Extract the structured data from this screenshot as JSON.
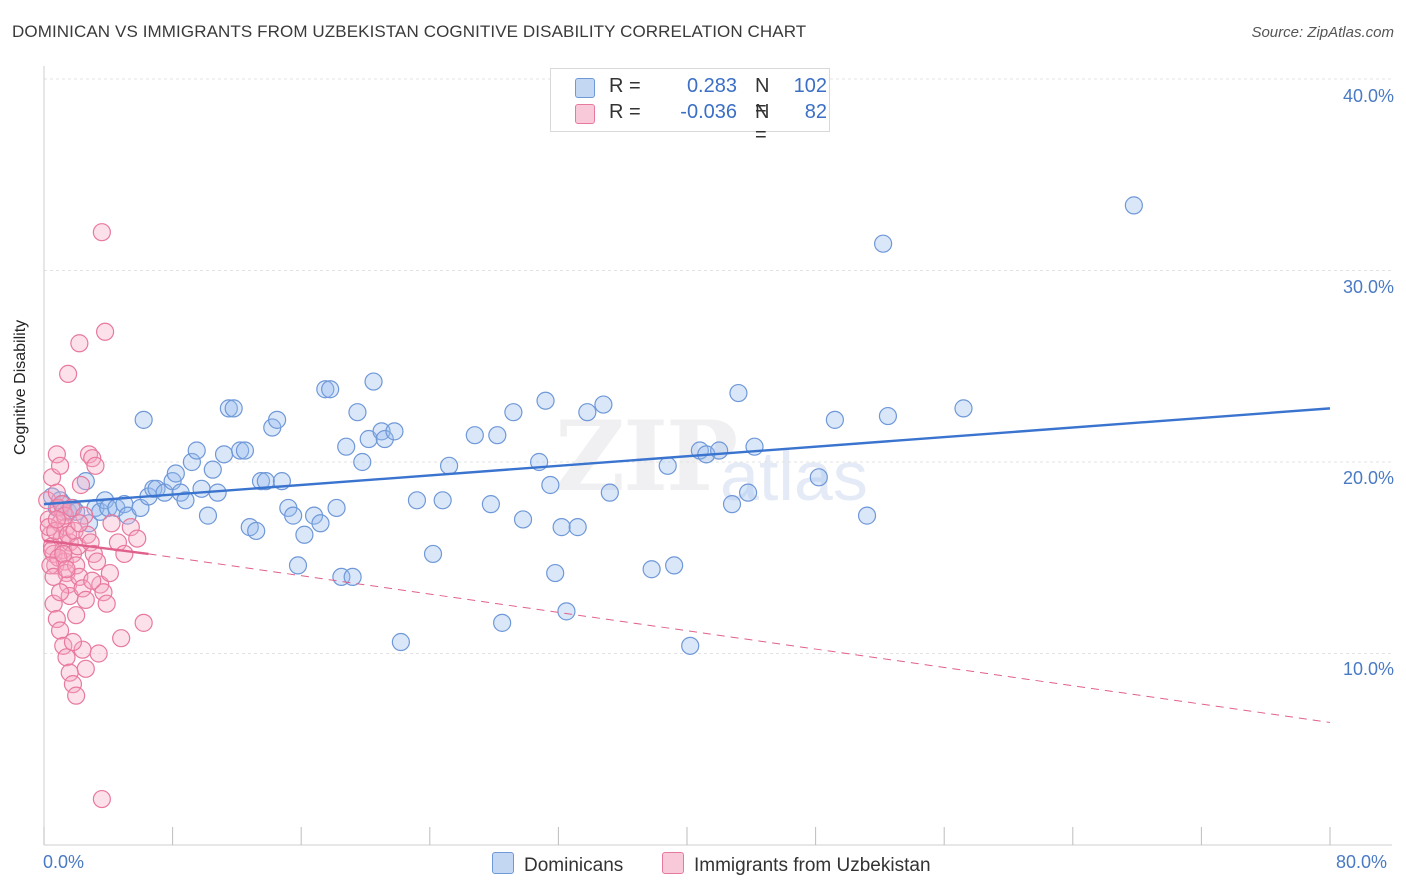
{
  "title": "DOMINICAN VS IMMIGRANTS FROM UZBEKISTAN COGNITIVE DISABILITY CORRELATION CHART",
  "source": "Source: ZipAtlas.com",
  "watermark": "ZIP",
  "watermark2": "atlas",
  "colors": {
    "blue": "#5b8fd6",
    "blue_fill": "#aec8ef",
    "pink": "#e8739a",
    "pink_fill": "#f5b8cc",
    "accent_text": "#3b6fc6"
  },
  "legend": {
    "rows": [
      {
        "r_label": "R =",
        "r_value": "0.283",
        "n_label": "N =",
        "n_value": "102"
      },
      {
        "r_label": "R =",
        "r_value": "-0.036",
        "n_label": "N =",
        "n_value": "82"
      }
    ]
  },
  "bottom_legend": {
    "series1": "Dominicans",
    "series2": "Immigrants from Uzbekistan"
  },
  "y_axis": {
    "label": "Cognitive Disability",
    "ticks": [
      "40.0%",
      "30.0%",
      "20.0%",
      "10.0%"
    ]
  },
  "x_axis": {
    "min_label": "0.0%",
    "max_label": "80.0%"
  },
  "chart_data": {
    "type": "scatter",
    "xlabel": "",
    "ylabel": "Cognitive Disability",
    "xlim": [
      0,
      80
    ],
    "ylim": [
      0,
      41
    ],
    "grid": true,
    "legend_position": "top-center",
    "series": [
      {
        "name": "Dominicans",
        "trend": {
          "x": [
            0,
            80
          ],
          "y": [
            17.8,
            22.8
          ],
          "style": "solid"
        },
        "points": [
          [
            0.5,
            18.2
          ],
          [
            0.8,
            17.6
          ],
          [
            1.0,
            18.0
          ],
          [
            1.2,
            17.8
          ],
          [
            1.5,
            17.4
          ],
          [
            1.8,
            17.6
          ],
          [
            2.0,
            17.4
          ],
          [
            2.6,
            19.0
          ],
          [
            2.8,
            16.8
          ],
          [
            3.2,
            17.6
          ],
          [
            3.5,
            17.4
          ],
          [
            3.8,
            18.0
          ],
          [
            4.0,
            17.6
          ],
          [
            4.5,
            17.6
          ],
          [
            5.0,
            17.8
          ],
          [
            5.2,
            17.2
          ],
          [
            6.0,
            17.6
          ],
          [
            6.2,
            22.2
          ],
          [
            6.5,
            18.2
          ],
          [
            6.8,
            18.6
          ],
          [
            7.0,
            18.6
          ],
          [
            7.5,
            18.4
          ],
          [
            8.0,
            19.0
          ],
          [
            8.2,
            19.4
          ],
          [
            8.5,
            18.4
          ],
          [
            8.8,
            18.0
          ],
          [
            9.2,
            20.0
          ],
          [
            9.5,
            20.6
          ],
          [
            9.8,
            18.6
          ],
          [
            10.2,
            17.2
          ],
          [
            10.5,
            19.6
          ],
          [
            10.8,
            18.4
          ],
          [
            11.2,
            20.4
          ],
          [
            11.5,
            22.8
          ],
          [
            11.8,
            22.8
          ],
          [
            12.2,
            20.6
          ],
          [
            12.5,
            20.6
          ],
          [
            12.8,
            16.6
          ],
          [
            13.2,
            16.4
          ],
          [
            13.5,
            19.0
          ],
          [
            13.8,
            19.0
          ],
          [
            14.2,
            21.8
          ],
          [
            14.5,
            22.2
          ],
          [
            14.8,
            19.0
          ],
          [
            15.2,
            17.6
          ],
          [
            15.5,
            17.2
          ],
          [
            15.8,
            14.6
          ],
          [
            16.2,
            16.2
          ],
          [
            16.8,
            17.2
          ],
          [
            17.2,
            16.8
          ],
          [
            17.5,
            23.8
          ],
          [
            17.8,
            23.8
          ],
          [
            18.2,
            17.6
          ],
          [
            18.5,
            14.0
          ],
          [
            18.8,
            20.8
          ],
          [
            19.2,
            14.0
          ],
          [
            19.5,
            22.6
          ],
          [
            19.8,
            20.0
          ],
          [
            20.2,
            21.2
          ],
          [
            20.5,
            24.2
          ],
          [
            21.0,
            21.6
          ],
          [
            21.2,
            21.2
          ],
          [
            21.8,
            21.6
          ],
          [
            22.2,
            10.6
          ],
          [
            23.2,
            18.0
          ],
          [
            24.2,
            15.2
          ],
          [
            24.8,
            18.0
          ],
          [
            25.2,
            19.8
          ],
          [
            26.8,
            21.4
          ],
          [
            27.8,
            17.8
          ],
          [
            28.2,
            21.4
          ],
          [
            28.5,
            11.6
          ],
          [
            29.2,
            22.6
          ],
          [
            29.8,
            17.0
          ],
          [
            30.8,
            20.0
          ],
          [
            31.2,
            23.2
          ],
          [
            31.5,
            18.8
          ],
          [
            31.8,
            14.2
          ],
          [
            32.2,
            16.6
          ],
          [
            32.5,
            12.2
          ],
          [
            33.2,
            16.6
          ],
          [
            33.8,
            22.6
          ],
          [
            34.8,
            23.0
          ],
          [
            35.2,
            18.4
          ],
          [
            37.8,
            14.4
          ],
          [
            38.8,
            19.8
          ],
          [
            39.2,
            14.6
          ],
          [
            40.2,
            10.4
          ],
          [
            40.8,
            20.6
          ],
          [
            41.2,
            20.4
          ],
          [
            42.8,
            17.8
          ],
          [
            43.2,
            23.6
          ],
          [
            43.8,
            18.4
          ],
          [
            44.2,
            20.8
          ],
          [
            48.2,
            19.2
          ],
          [
            49.2,
            22.2
          ],
          [
            51.2,
            17.2
          ],
          [
            52.2,
            31.4
          ],
          [
            52.5,
            22.4
          ],
          [
            57.2,
            22.8
          ],
          [
            67.8,
            33.4
          ],
          [
            42.0,
            20.6
          ]
        ]
      },
      {
        "name": "Immigrants from Uzbekistan",
        "trend": {
          "x": [
            0,
            6.5,
            80
          ],
          "y": [
            15.9,
            15.2,
            6.4
          ],
          "style": "solid-then-dashed"
        },
        "points": [
          [
            0.2,
            18.0
          ],
          [
            0.3,
            17.0
          ],
          [
            0.4,
            16.2
          ],
          [
            0.5,
            15.6
          ],
          [
            0.6,
            15.2
          ],
          [
            0.7,
            14.6
          ],
          [
            0.8,
            18.4
          ],
          [
            0.9,
            17.6
          ],
          [
            1.0,
            16.8
          ],
          [
            1.1,
            16.0
          ],
          [
            1.2,
            15.4
          ],
          [
            1.3,
            14.8
          ],
          [
            1.4,
            14.2
          ],
          [
            1.5,
            13.6
          ],
          [
            1.6,
            13.0
          ],
          [
            0.5,
            19.2
          ],
          [
            0.8,
            20.4
          ],
          [
            1.0,
            19.8
          ],
          [
            1.2,
            17.4
          ],
          [
            1.4,
            16.6
          ],
          [
            1.6,
            15.8
          ],
          [
            1.8,
            15.2
          ],
          [
            2.0,
            14.6
          ],
          [
            2.2,
            14.0
          ],
          [
            2.4,
            13.4
          ],
          [
            2.6,
            12.8
          ],
          [
            0.3,
            16.6
          ],
          [
            0.5,
            15.4
          ],
          [
            0.7,
            16.4
          ],
          [
            0.9,
            15.0
          ],
          [
            1.1,
            17.8
          ],
          [
            1.3,
            17.2
          ],
          [
            1.5,
            16.2
          ],
          [
            1.7,
            17.6
          ],
          [
            1.9,
            16.4
          ],
          [
            2.1,
            15.6
          ],
          [
            2.3,
            18.8
          ],
          [
            2.5,
            17.2
          ],
          [
            2.7,
            16.2
          ],
          [
            2.9,
            15.8
          ],
          [
            3.1,
            15.2
          ],
          [
            3.3,
            14.8
          ],
          [
            3.5,
            13.6
          ],
          [
            3.7,
            13.2
          ],
          [
            3.9,
            12.6
          ],
          [
            4.1,
            14.2
          ],
          [
            0.6,
            12.6
          ],
          [
            0.8,
            11.8
          ],
          [
            1.0,
            11.2
          ],
          [
            1.2,
            10.4
          ],
          [
            1.4,
            9.8
          ],
          [
            1.6,
            9.0
          ],
          [
            1.8,
            8.4
          ],
          [
            2.0,
            7.8
          ],
          [
            1.5,
            24.6
          ],
          [
            2.2,
            26.2
          ],
          [
            2.8,
            20.4
          ],
          [
            3.0,
            20.2
          ],
          [
            3.2,
            19.8
          ],
          [
            3.6,
            32.0
          ],
          [
            3.8,
            26.8
          ],
          [
            4.2,
            16.8
          ],
          [
            4.6,
            15.8
          ],
          [
            5.0,
            15.2
          ],
          [
            5.4,
            16.6
          ],
          [
            5.8,
            16.0
          ],
          [
            6.2,
            11.6
          ],
          [
            4.8,
            10.8
          ],
          [
            2.4,
            10.2
          ],
          [
            3.4,
            10.0
          ],
          [
            2.6,
            9.2
          ],
          [
            1.8,
            10.6
          ],
          [
            0.4,
            14.6
          ],
          [
            0.6,
            14.0
          ],
          [
            1.0,
            13.2
          ],
          [
            2.0,
            12.0
          ],
          [
            3.0,
            13.8
          ],
          [
            3.6,
            2.4
          ],
          [
            1.2,
            15.2
          ],
          [
            0.8,
            17.0
          ],
          [
            2.2,
            16.8
          ],
          [
            1.4,
            14.4
          ]
        ]
      }
    ]
  }
}
